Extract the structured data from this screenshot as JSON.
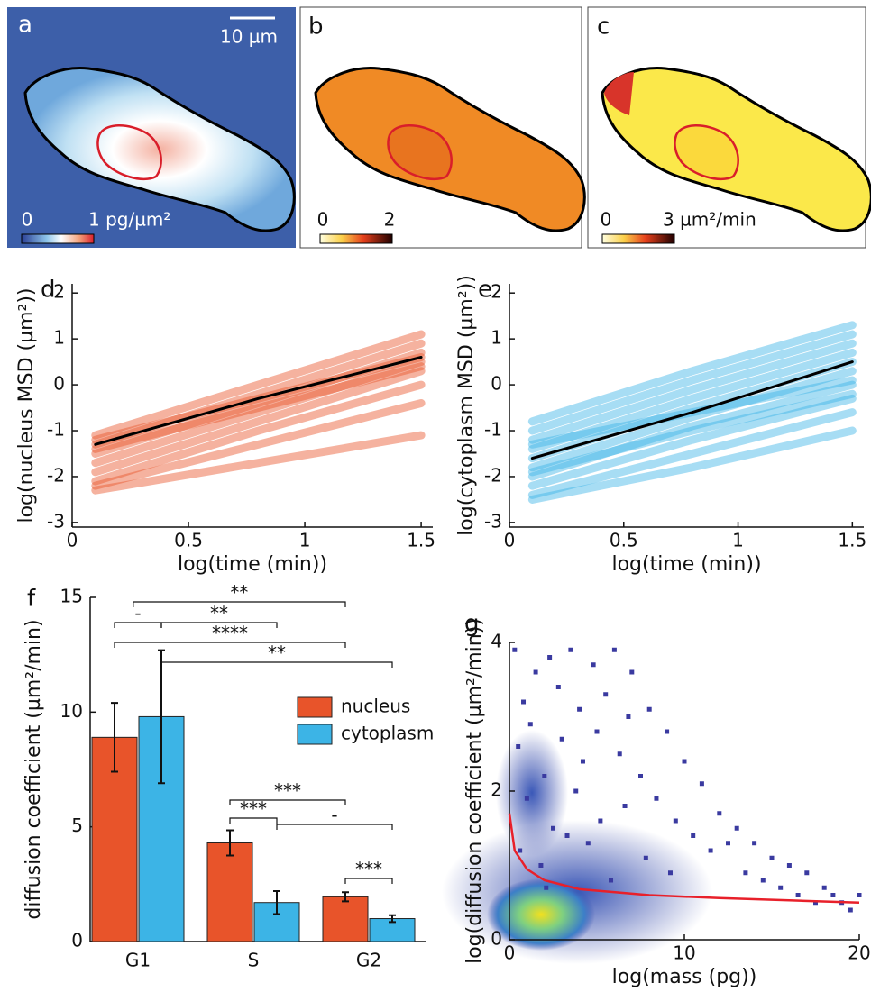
{
  "image_panels": [
    {
      "label": "a",
      "scale_bar": "10 µm",
      "colorbar_min": "0",
      "colorbar_max": "1 pg/µm²"
    },
    {
      "label": "b",
      "colorbar_min": "0",
      "colorbar_max": "2"
    },
    {
      "label": "c",
      "colorbar_min": "0",
      "colorbar_max": "3 µm²/min"
    }
  ],
  "chart_data": [
    {
      "type": "line",
      "label": "d",
      "xlabel": "log(time (min))",
      "ylabel": "log(nucleus MSD (µm²))",
      "xlim": [
        0,
        1.55
      ],
      "ylim": [
        -3.1,
        2.2
      ],
      "xticks": [
        0,
        0.5,
        1,
        1.5
      ],
      "yticks": [
        -3,
        -2,
        -1,
        0,
        1,
        2
      ],
      "x": [
        0.1,
        0.8,
        1.5
      ],
      "series": [
        {
          "color": "#e8542a",
          "values": [
            -1.1,
            0.0,
            1.1
          ]
        },
        {
          "color": "#e8542a",
          "values": [
            -1.3,
            -0.2,
            0.9
          ]
        },
        {
          "color": "#e8542a",
          "values": [
            -1.5,
            -0.4,
            0.7
          ]
        },
        {
          "color": "#e8542a",
          "values": [
            -1.7,
            -0.6,
            0.5
          ]
        },
        {
          "color": "#e8542a",
          "values": [
            -1.9,
            -0.8,
            0.3
          ]
        },
        {
          "color": "#e8542a",
          "values": [
            -2.1,
            -1.0,
            0.0
          ]
        },
        {
          "color": "#e8542a",
          "values": [
            -2.2,
            -1.3,
            -0.4
          ]
        },
        {
          "color": "#e8542a",
          "values": [
            -2.3,
            -1.7,
            -1.1
          ]
        },
        {
          "color": "#e8542a",
          "values": [
            -1.4,
            -0.5,
            0.4
          ]
        },
        {
          "color": "#e8542a",
          "values": [
            -1.2,
            -0.3,
            0.6
          ]
        },
        {
          "color": "#000000",
          "values": [
            -1.3,
            -0.3,
            0.6
          ]
        }
      ]
    },
    {
      "type": "line",
      "label": "e",
      "xlabel": "log(time (min))",
      "ylabel": "log(cytoplasm MSD (µm²))",
      "xlim": [
        0,
        1.55
      ],
      "ylim": [
        -3.1,
        2.2
      ],
      "xticks": [
        0,
        0.5,
        1,
        1.5
      ],
      "yticks": [
        -3,
        -2,
        -1,
        0,
        1,
        2
      ],
      "x": [
        0.1,
        0.8,
        1.5
      ],
      "series": [
        {
          "color": "#3cb4e6",
          "values": [
            -0.8,
            0.3,
            1.3
          ]
        },
        {
          "color": "#3cb4e6",
          "values": [
            -1.0,
            0.1,
            1.1
          ]
        },
        {
          "color": "#3cb4e6",
          "values": [
            -1.2,
            -0.1,
            0.9
          ]
        },
        {
          "color": "#3cb4e6",
          "values": [
            -1.4,
            -0.3,
            0.7
          ]
        },
        {
          "color": "#3cb4e6",
          "values": [
            -1.6,
            -0.5,
            0.5
          ]
        },
        {
          "color": "#3cb4e6",
          "values": [
            -1.8,
            -0.7,
            0.3
          ]
        },
        {
          "color": "#3cb4e6",
          "values": [
            -2.0,
            -0.9,
            0.0
          ]
        },
        {
          "color": "#3cb4e6",
          "values": [
            -2.2,
            -1.2,
            -0.3
          ]
        },
        {
          "color": "#3cb4e6",
          "values": [
            -2.4,
            -1.5,
            -0.6
          ]
        },
        {
          "color": "#3cb4e6",
          "values": [
            -2.5,
            -1.8,
            -1.0
          ]
        },
        {
          "color": "#3cb4e6",
          "values": [
            -1.3,
            -0.6,
            0.1
          ]
        },
        {
          "color": "#3cb4e6",
          "values": [
            -1.9,
            -1.0,
            -0.2
          ]
        },
        {
          "color": "#000000",
          "values": [
            -1.6,
            -0.6,
            0.5
          ]
        }
      ]
    },
    {
      "type": "bar",
      "label": "f",
      "ylabel": "diffusion coefficient (µm²/min)",
      "ylim": [
        0,
        15
      ],
      "yticks": [
        0,
        5,
        10,
        15
      ],
      "categories": [
        "G1",
        "S",
        "G2"
      ],
      "series": [
        {
          "name": "nucleus",
          "color": "#e8542a",
          "values": [
            8.9,
            4.3,
            1.95
          ],
          "errors": [
            1.5,
            0.55,
            0.2
          ]
        },
        {
          "name": "cytoplasm",
          "color": "#3cb4e6",
          "values": [
            9.8,
            1.7,
            1.0
          ],
          "errors": [
            2.9,
            0.5,
            0.15
          ]
        }
      ],
      "significance": [
        "**",
        "-",
        "**",
        "****",
        "**",
        "***",
        "***",
        "-",
        "***"
      ]
    },
    {
      "type": "scatter",
      "label": "g",
      "xlabel": "log(mass (pg))",
      "ylabel": "log(diffusion coefficient (µm²/min))",
      "xlim": [
        0,
        20
      ],
      "ylim": [
        0,
        4
      ],
      "xticks": [
        0,
        10,
        20
      ],
      "yticks": [
        0,
        2,
        4
      ],
      "color": "#3a3aa0",
      "x": [
        0.3,
        0.5,
        0.8,
        1.2,
        1.5,
        2,
        2.3,
        2.8,
        3,
        3.5,
        4,
        4.2,
        4.8,
        5,
        5.5,
        6,
        6.3,
        6.8,
        7,
        7.5,
        8,
        8.4,
        9,
        9.5,
        10,
        10.5,
        11,
        11.5,
        12,
        12.5,
        13,
        13.5,
        14,
        14.5,
        15,
        15.5,
        16,
        16.5,
        17,
        17.5,
        18,
        18.5,
        19,
        19.5,
        20,
        1,
        2.5,
        3.8,
        5.2,
        6.6,
        0.6,
        1.8,
        3.3,
        7.8,
        9.2,
        4.5,
        2.1,
        5.8
      ],
      "y": [
        3.9,
        2.6,
        3.2,
        2.9,
        3.6,
        2.2,
        3.8,
        3.4,
        2.7,
        3.9,
        3.1,
        2.4,
        3.7,
        2.8,
        3.3,
        3.9,
        2.5,
        3.0,
        3.6,
        2.2,
        3.1,
        1.9,
        2.8,
        1.6,
        2.4,
        1.4,
        2.1,
        1.2,
        1.7,
        1.3,
        1.5,
        0.9,
        1.3,
        0.8,
        1.1,
        0.7,
        1.0,
        0.6,
        0.9,
        0.5,
        0.7,
        0.6,
        0.5,
        0.4,
        0.6,
        1.9,
        1.5,
        2.0,
        1.6,
        1.8,
        1.2,
        1.0,
        1.4,
        1.1,
        0.9,
        1.3,
        0.7,
        0.8
      ],
      "fit": {
        "color": "#e8202a",
        "x": [
          0,
          0.3,
          1,
          2,
          4,
          8,
          12,
          16,
          20
        ],
        "y": [
          1.7,
          1.2,
          0.95,
          0.8,
          0.68,
          0.6,
          0.56,
          0.53,
          0.5
        ]
      }
    }
  ]
}
